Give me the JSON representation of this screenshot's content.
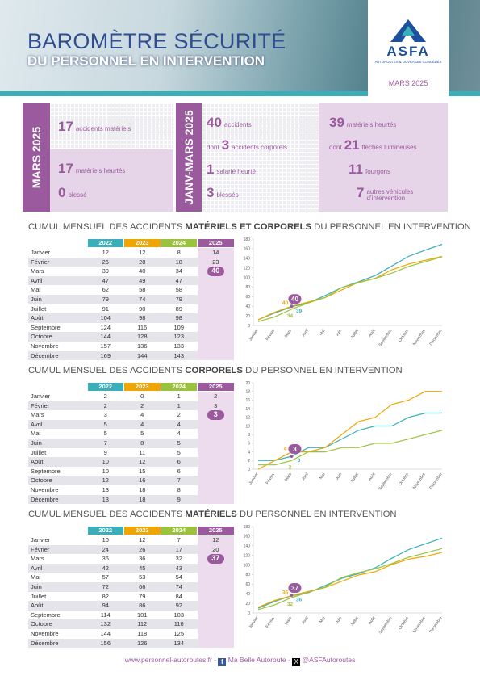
{
  "header": {
    "title": "BAROMÈTRE SÉCURITÉ",
    "subtitle": "DU PERSONNEL EN INTERVENTION",
    "logo": "ASFA",
    "logo_tagline": "AUTOROUTES & OUVRAGES CONCÉDÉS",
    "date": "MARS 2025"
  },
  "summary": {
    "month": {
      "label": "MARS 2025",
      "items": [
        {
          "value": 17,
          "text": "accidents matériels"
        },
        {
          "value": 17,
          "text": "matériels heurtés"
        },
        {
          "value": 0,
          "text": "blessé"
        }
      ]
    },
    "period": {
      "label": "JANV-MARS 2025",
      "left": [
        {
          "value": 40,
          "text": "accidents"
        },
        {
          "prefix": "dont",
          "value": 3,
          "text": "accidents corporels"
        },
        {
          "value": 1,
          "text": "salarié heurté"
        },
        {
          "value": 3,
          "text": "blessés"
        }
      ],
      "right": [
        {
          "value": 39,
          "text": "matériels heurtés"
        },
        {
          "prefix": "dont",
          "value": 21,
          "text": "flèches lumineuses"
        },
        {
          "value": 11,
          "text": "fourgons"
        },
        {
          "value": 7,
          "text": "autres véhicules d’intervention"
        }
      ]
    }
  },
  "chart_data": [
    {
      "type": "line",
      "title": [
        "CUMUL MENSUEL DES ACCIDENTS ",
        "MATÉRIELS ET CORPORELS",
        " DU PERSONNEL EN INTERVENTION"
      ],
      "categories": [
        "Janvier",
        "Février",
        "Mars",
        "Avril",
        "Mai",
        "Juin",
        "Juillet",
        "Août",
        "Septembre",
        "Octobre",
        "Novembre",
        "Décembre"
      ],
      "series": [
        {
          "name": "2022",
          "color": "#3aafb9",
          "values": [
            12,
            26,
            39,
            47,
            62,
            79,
            91,
            104,
            124,
            144,
            157,
            169
          ]
        },
        {
          "name": "2023",
          "color": "#f0a500",
          "values": [
            12,
            28,
            40,
            49,
            58,
            74,
            90,
            98,
            116,
            128,
            136,
            144
          ]
        },
        {
          "name": "2024",
          "color": "#9bc23c",
          "values": [
            8,
            18,
            34,
            47,
            58,
            79,
            89,
            98,
            109,
            123,
            133,
            143
          ]
        },
        {
          "name": "2025",
          "color": "#9b5a9e",
          "values": [
            14,
            23,
            40,
            null,
            null,
            null,
            null,
            null,
            null,
            null,
            null,
            null
          ]
        }
      ],
      "ylim": [
        0,
        180
      ],
      "yticks": [
        0,
        20,
        40,
        60,
        80,
        100,
        120,
        140,
        160,
        180
      ]
    },
    {
      "type": "line",
      "title": [
        "CUMUL MENSUEL DES ACCIDENTS ",
        "CORPORELS",
        " DU PERSONNEL EN INTERVENTION"
      ],
      "categories": [
        "Janvier",
        "Février",
        "Mars",
        "Avril",
        "Mai",
        "Juin",
        "Juillet",
        "Août",
        "Septembre",
        "Octobre",
        "Novembre",
        "Décembre"
      ],
      "series": [
        {
          "name": "2022",
          "color": "#3aafb9",
          "values": [
            2,
            2,
            3,
            5,
            5,
            7,
            9,
            10,
            10,
            12,
            13,
            13
          ]
        },
        {
          "name": "2023",
          "color": "#f0a500",
          "values": [
            0,
            2,
            4,
            4,
            5,
            8,
            11,
            12,
            15,
            16,
            18,
            18
          ]
        },
        {
          "name": "2024",
          "color": "#9bc23c",
          "values": [
            1,
            1,
            2,
            4,
            4,
            5,
            5,
            6,
            6,
            7,
            8,
            9
          ]
        },
        {
          "name": "2025",
          "color": "#9b5a9e",
          "values": [
            2,
            3,
            3,
            null,
            null,
            null,
            null,
            null,
            null,
            null,
            null,
            null
          ]
        }
      ],
      "ylim": [
        0,
        20
      ],
      "yticks": [
        0,
        2,
        4,
        6,
        8,
        10,
        12,
        14,
        16,
        18,
        20
      ]
    },
    {
      "type": "line",
      "title": [
        "CUMUL MENSUEL DES ACCIDENTS ",
        "MATÉRIELS",
        " DU PERSONNEL EN INTERVENTION"
      ],
      "categories": [
        "Janvier",
        "Février",
        "Mars",
        "Avril",
        "Mai",
        "Juin",
        "Juillet",
        "Août",
        "Septembre",
        "Octobre",
        "Novembre",
        "Décembre"
      ],
      "series": [
        {
          "name": "2022",
          "color": "#3aafb9",
          "values": [
            10,
            24,
            36,
            42,
            57,
            72,
            82,
            94,
            114,
            132,
            144,
            156
          ]
        },
        {
          "name": "2023",
          "color": "#f0a500",
          "values": [
            12,
            26,
            36,
            45,
            53,
            66,
            79,
            86,
            101,
            112,
            118,
            126
          ]
        },
        {
          "name": "2024",
          "color": "#9bc23c",
          "values": [
            7,
            17,
            32,
            43,
            54,
            74,
            84,
            92,
            103,
            116,
            125,
            134
          ]
        },
        {
          "name": "2025",
          "color": "#9b5a9e",
          "values": [
            12,
            20,
            37,
            null,
            null,
            null,
            null,
            null,
            null,
            null,
            null,
            null
          ]
        }
      ],
      "ylim": [
        0,
        180
      ],
      "yticks": [
        0,
        20,
        40,
        60,
        80,
        100,
        120,
        140,
        160,
        180
      ]
    }
  ],
  "footer": {
    "website": "www.personnel-autoroutes.fr - ",
    "facebook": "Ma Belle Autoroute - ",
    "x": "@ASFAutoroutes"
  }
}
